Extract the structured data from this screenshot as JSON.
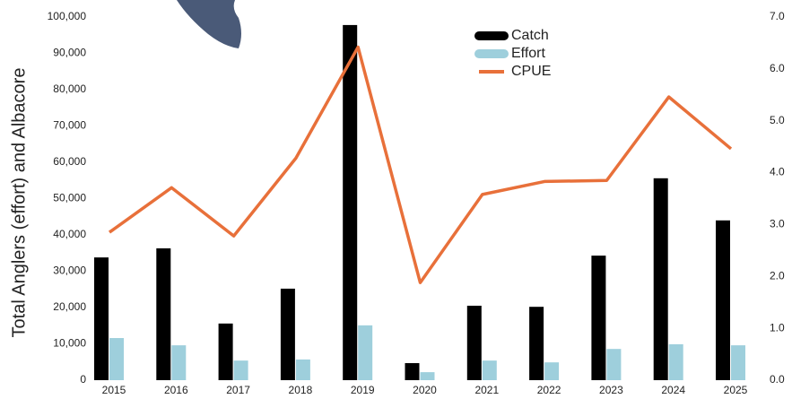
{
  "chart_data": {
    "type": "bar_line",
    "y_label": "Total Anglers (effort) and Albacore",
    "categories": [
      "2015",
      "2016",
      "2017",
      "2018",
      "2019",
      "2020",
      "2021",
      "2022",
      "2023",
      "2024",
      "2025"
    ],
    "series": [
      {
        "name": "Catch",
        "color": "#000000",
        "values": [
          33800,
          36300,
          15600,
          25200,
          97800,
          4700,
          20500,
          20200,
          34300,
          55600,
          44000
        ]
      },
      {
        "name": "Effort",
        "color": "#9ecfdc",
        "values": [
          11600,
          9600,
          5400,
          5700,
          15100,
          2200,
          5400,
          4900,
          8600,
          9900,
          9600
        ]
      },
      {
        "name": "CPUE",
        "color": "#e8703a",
        "axis": "y2",
        "type": "line",
        "values": [
          2.85,
          3.71,
          2.78,
          4.28,
          6.42,
          1.88,
          3.58,
          3.83,
          3.85,
          5.46,
          4.46
        ]
      }
    ],
    "ylim": [
      0,
      100000
    ],
    "yticks": [
      0,
      {
        "value": 10000,
        "label": "10,000"
      },
      {
        "value": 20000,
        "label": "20,000"
      },
      {
        "value": 30000,
        "label": "30,000"
      },
      {
        "value": 40000,
        "label": "40,000"
      },
      {
        "value": 50000,
        "label": "50,000"
      },
      {
        "value": 60000,
        "label": "60,000"
      },
      {
        "value": 70000,
        "label": "70,000"
      },
      {
        "value": 80000,
        "label": "80,000"
      },
      {
        "value": 90000,
        "label": "90,000"
      },
      {
        "value": 100000,
        "label": "100,000"
      }
    ],
    "y2lim": [
      0,
      7
    ],
    "y2ticks": [
      {
        "value": 0,
        "label": "0.0"
      },
      {
        "value": 1,
        "label": "1.0"
      },
      {
        "value": 2,
        "label": "2.0"
      },
      {
        "value": 3,
        "label": "3.0"
      },
      {
        "value": 4,
        "label": "4.0"
      },
      {
        "value": 5,
        "label": "5.0"
      },
      {
        "value": 6,
        "label": "6.0"
      },
      {
        "value": 7,
        "label": "7.0"
      }
    ],
    "legend": "top-center"
  }
}
